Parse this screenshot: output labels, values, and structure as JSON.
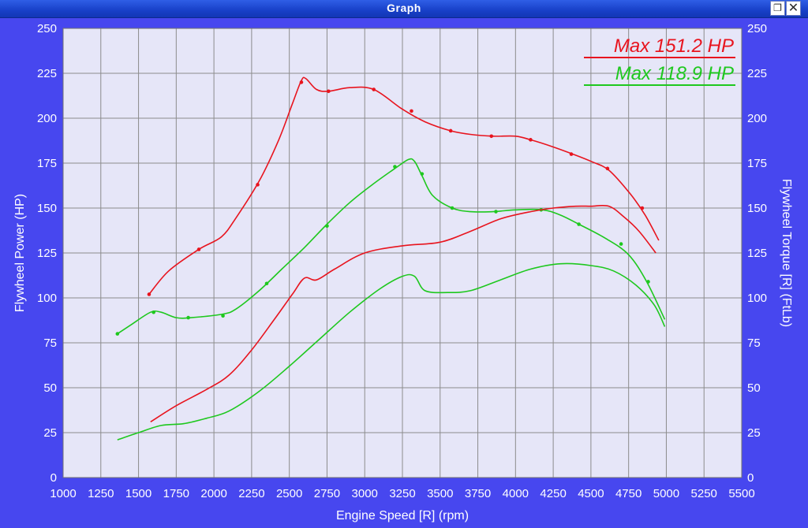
{
  "window": {
    "title": "Graph"
  },
  "icons": {
    "restore": "restore-window-icon",
    "close": "close-icon"
  },
  "colors": {
    "plot_bg": "#e6e6f8",
    "frame_bg": "#4747ef",
    "grid": "#8c8c8c",
    "power": "#e8141e",
    "power_alt": "#1ec81e"
  },
  "chart_data": {
    "type": "line",
    "title": "",
    "xlabel": "Engine Speed [R] (rpm)",
    "ylabel": "Flywheel Power (HP)",
    "ylabel_right": "Flywheel Torque [R] (FtLb)",
    "xlim": [
      1000,
      5500
    ],
    "ylim": [
      0,
      250
    ],
    "ylim_right": [
      0,
      250
    ],
    "x_ticks": [
      "1000",
      "1250",
      "1500",
      "1750",
      "2000",
      "2250",
      "2500",
      "2750",
      "3000",
      "3250",
      "3500",
      "3750",
      "4000",
      "4250",
      "4500",
      "4750",
      "5000",
      "5250",
      "5500"
    ],
    "y_ticks": [
      "0",
      "25",
      "50",
      "75",
      "100",
      "125",
      "150",
      "175",
      "200",
      "225",
      "250"
    ],
    "grid": true,
    "legend": "top-right",
    "annotations": [
      {
        "text": "Max 151.2 HP",
        "color": "#e8141e"
      },
      {
        "text": "Max 118.9 HP",
        "color": "#1ec81e"
      }
    ],
    "series": [
      {
        "color": "#e8141e",
        "axis": "right",
        "x": [
          1570,
          1700,
          1900,
          2050,
          2150,
          2300,
          2430,
          2520,
          2580,
          2610,
          2680,
          2760,
          2900,
          3060,
          3250,
          3400,
          3570,
          3700,
          3850,
          4000,
          4100,
          4250,
          4380,
          4500,
          4620,
          4760,
          4860,
          4950
        ],
        "y": [
          102,
          115,
          127,
          134,
          145,
          165,
          188,
          208,
          221,
          222,
          216,
          215,
          217,
          216,
          205,
          198,
          193,
          191,
          190,
          190,
          188,
          184,
          180,
          176,
          171,
          158,
          146,
          132
        ],
        "markers_x": [
          1570,
          1900,
          2290,
          2580,
          2760,
          3060,
          3310,
          3570,
          3840,
          4100,
          4370,
          4610,
          4840
        ],
        "markers_y": [
          102,
          127,
          163,
          220,
          215,
          216,
          204,
          193,
          190,
          188,
          180,
          172,
          150
        ]
      },
      {
        "color": "#1ec81e",
        "axis": "right",
        "x": [
          1360,
          1450,
          1580,
          1650,
          1750,
          1850,
          2060,
          2150,
          2300,
          2450,
          2600,
          2750,
          2900,
          3050,
          3200,
          3290,
          3330,
          3380,
          3450,
          3580,
          3700,
          3850,
          4000,
          4180,
          4300,
          4420,
          4600,
          4750,
          4870,
          4990
        ],
        "y": [
          80,
          85,
          92,
          92,
          89,
          89,
          91,
          94,
          104,
          116,
          128,
          141,
          153,
          163,
          172,
          177,
          176,
          168,
          157,
          150,
          148,
          148,
          149,
          149,
          146,
          141,
          133,
          124,
          109,
          88
        ],
        "markers_x": [
          1360,
          1600,
          1830,
          2060,
          2350,
          2750,
          3200,
          3380,
          3580,
          3870,
          4170,
          4420,
          4700,
          4880
        ],
        "markers_y": [
          80,
          92,
          89,
          90,
          108,
          140,
          173,
          169,
          150,
          148,
          149,
          141,
          130,
          109
        ]
      },
      {
        "color": "#e8141e",
        "axis": "left",
        "x": [
          1580,
          1750,
          1950,
          2100,
          2250,
          2400,
          2520,
          2600,
          2680,
          2800,
          3000,
          3250,
          3500,
          3700,
          3900,
          4100,
          4250,
          4400,
          4500,
          4620,
          4720,
          4820,
          4930
        ],
        "y": [
          31,
          40,
          49,
          57,
          71,
          88,
          102,
          111,
          110,
          116,
          125,
          129,
          131,
          137,
          144,
          148,
          150,
          151,
          151,
          151,
          145,
          137,
          125
        ]
      },
      {
        "color": "#1ec81e",
        "axis": "left",
        "x": [
          1360,
          1500,
          1650,
          1800,
          1950,
          2100,
          2300,
          2500,
          2700,
          2900,
          3100,
          3250,
          3330,
          3400,
          3550,
          3700,
          3900,
          4100,
          4300,
          4500,
          4650,
          4800,
          4920,
          4990
        ],
        "y": [
          21,
          25,
          29,
          30,
          33,
          37,
          48,
          62,
          77,
          92,
          105,
          112,
          112,
          104,
          103,
          104,
          110,
          116,
          119,
          118,
          115,
          107,
          96,
          84
        ]
      }
    ]
  }
}
